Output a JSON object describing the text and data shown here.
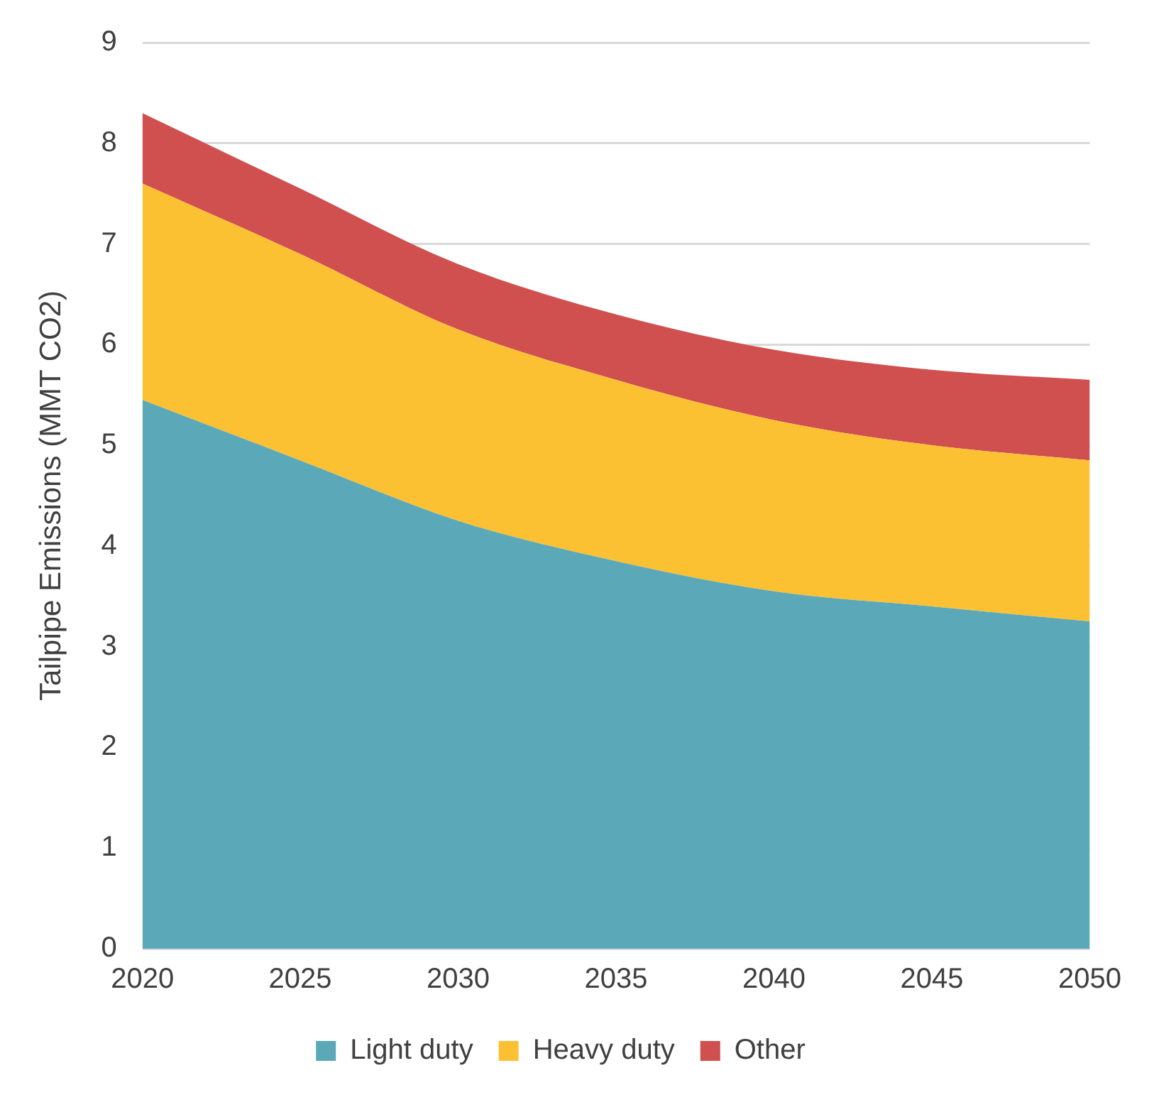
{
  "chart_data": {
    "type": "area",
    "stacked": true,
    "ylabel": "Tailpipe Emissions (MMT CO2)",
    "x": [
      2020,
      2025,
      2030,
      2035,
      2040,
      2045,
      2050
    ],
    "series": [
      {
        "name": "Light duty",
        "color": "#5ba8b9",
        "values": [
          5.45,
          4.85,
          4.25,
          3.85,
          3.55,
          3.4,
          3.25
        ]
      },
      {
        "name": "Heavy duty",
        "color": "#fbc132",
        "values": [
          2.15,
          2.05,
          1.9,
          1.8,
          1.7,
          1.6,
          1.6
        ]
      },
      {
        "name": "Other",
        "color": "#d05050",
        "values": [
          0.7,
          0.65,
          0.65,
          0.65,
          0.7,
          0.75,
          0.8
        ]
      }
    ],
    "xlim": [
      2020,
      2050
    ],
    "xticks": [
      2020,
      2025,
      2030,
      2035,
      2040,
      2045,
      2050
    ],
    "ylim": [
      0,
      9
    ],
    "yticks": [
      0,
      1,
      2,
      3,
      4,
      5,
      6,
      7,
      8,
      9
    ],
    "grid": "y",
    "legend": "bottom",
    "marker": "none"
  }
}
